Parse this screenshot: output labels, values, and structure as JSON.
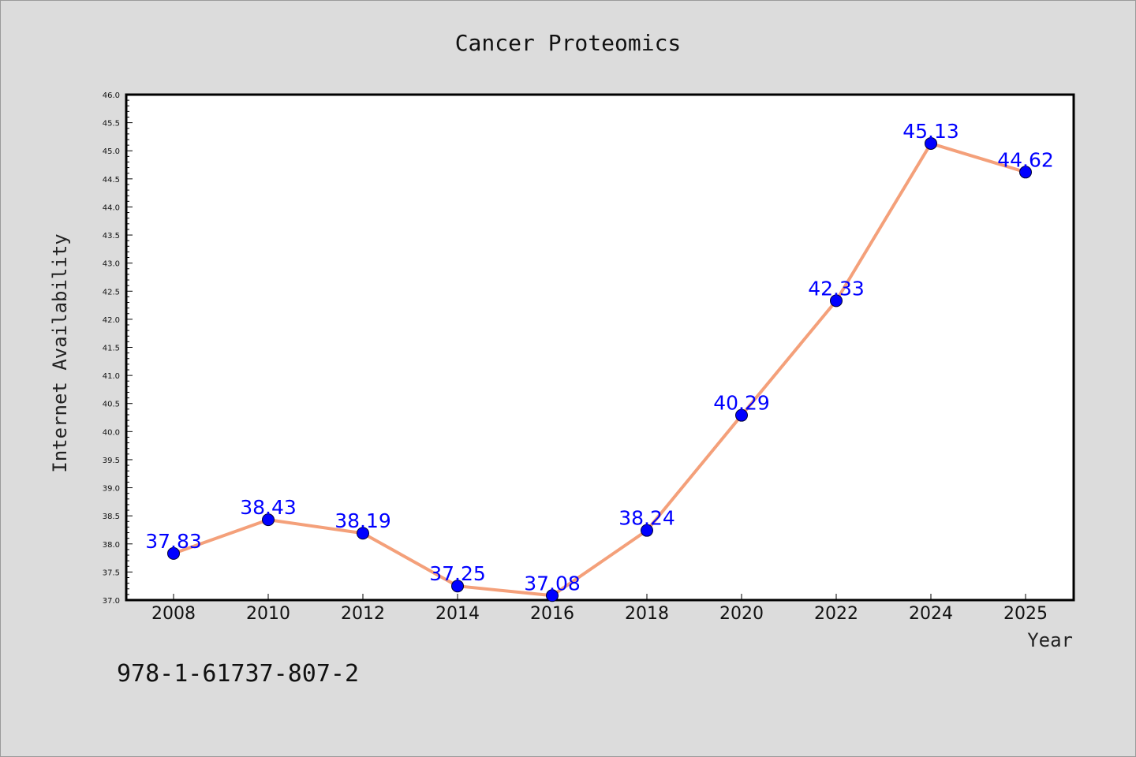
{
  "chart_data": {
    "type": "line",
    "title": "Cancer Proteomics",
    "xlabel": "Year",
    "ylabel": "Internet Availability",
    "categories": [
      "2008",
      "2010",
      "2012",
      "2014",
      "2016",
      "2018",
      "2020",
      "2022",
      "2024",
      "2025"
    ],
    "values": [
      37.83,
      38.43,
      38.19,
      37.25,
      37.08,
      38.24,
      40.29,
      42.33,
      45.13,
      44.62
    ],
    "data_labels": [
      "37.83",
      "38.43",
      "38.19",
      "37.25",
      "37.08",
      "38.24",
      "40.29",
      "42.33",
      "45.13",
      "44.62"
    ],
    "ylim": [
      37.0,
      46.0
    ],
    "ytick_labels": [
      "37.0",
      "37.5",
      "38.0",
      "38.5",
      "39.0",
      "39.5",
      "40.0",
      "40.5",
      "41.0",
      "41.5",
      "42.0",
      "42.5",
      "43.0",
      "43.5",
      "44.0",
      "44.5",
      "45.0",
      "45.5",
      "46.0"
    ],
    "grid": false,
    "line_color": "#f4a07a",
    "marker_color": "#0000ff",
    "label_color": "#0000ff",
    "background_color": "#dcdcdc"
  },
  "footer": {
    "isbn": "978-1-61737-807-2"
  }
}
